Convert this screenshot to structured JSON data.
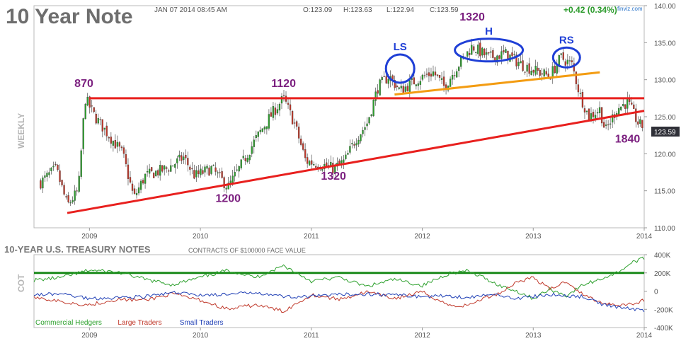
{
  "title": "10 Year Note",
  "header": {
    "timestamp": "JAN 07 2014 08:45 AM",
    "open": "O:123.09",
    "high": "H:123.63",
    "low": "L:122.94",
    "close": "C:123.59",
    "change": "+0.42 (0.34%)",
    "brand": "finviz.com"
  },
  "side_label": "WEEKLY",
  "last_price_tag": "123.59",
  "colors": {
    "up_candle": "#2ca02c",
    "down_candle": "#c0392b",
    "resistance": "#e8201e",
    "neckline": "#f39c12",
    "annotation": "#7b1f7f",
    "circle": "#1f3fd6",
    "zero_line": "#1a8a1a"
  },
  "chart_data": [
    {
      "type": "candlestick",
      "frequency": "weekly",
      "x_ticks": [
        "2009",
        "2010",
        "2011",
        "2012",
        "2013",
        "2014"
      ],
      "y_ticks": [
        "110.00",
        "115.00",
        "120.00",
        "125.00",
        "130.00",
        "135.00",
        "140.00"
      ],
      "ylim": [
        110,
        140
      ],
      "grid": false,
      "close_path": [
        {
          "t": 2008.55,
          "v": 116.0
        },
        {
          "t": 2008.7,
          "v": 118.0
        },
        {
          "t": 2008.8,
          "v": 113.0
        },
        {
          "t": 2008.9,
          "v": 115.0
        },
        {
          "t": 2008.96,
          "v": 127.5
        },
        {
          "t": 2009.05,
          "v": 125.0
        },
        {
          "t": 2009.2,
          "v": 122.0
        },
        {
          "t": 2009.3,
          "v": 120.0
        },
        {
          "t": 2009.4,
          "v": 114.0
        },
        {
          "t": 2009.5,
          "v": 117.0
        },
        {
          "t": 2009.7,
          "v": 118.0
        },
        {
          "t": 2009.85,
          "v": 119.5
        },
        {
          "t": 2009.95,
          "v": 117.0
        },
        {
          "t": 2010.1,
          "v": 118.0
        },
        {
          "t": 2010.25,
          "v": 115.5
        },
        {
          "t": 2010.35,
          "v": 118.0
        },
        {
          "t": 2010.5,
          "v": 122.0
        },
        {
          "t": 2010.65,
          "v": 125.5
        },
        {
          "t": 2010.75,
          "v": 127.5
        },
        {
          "t": 2010.85,
          "v": 124.0
        },
        {
          "t": 2010.95,
          "v": 119.0
        },
        {
          "t": 2011.1,
          "v": 118.5
        },
        {
          "t": 2011.2,
          "v": 118.0
        },
        {
          "t": 2011.3,
          "v": 119.0
        },
        {
          "t": 2011.4,
          "v": 122.0
        },
        {
          "t": 2011.5,
          "v": 124.0
        },
        {
          "t": 2011.6,
          "v": 129.0
        },
        {
          "t": 2011.7,
          "v": 130.5
        },
        {
          "t": 2011.8,
          "v": 128.5
        },
        {
          "t": 2011.95,
          "v": 130.0
        },
        {
          "t": 2012.1,
          "v": 131.0
        },
        {
          "t": 2012.2,
          "v": 129.0
        },
        {
          "t": 2012.3,
          "v": 131.5
        },
        {
          "t": 2012.45,
          "v": 134.5
        },
        {
          "t": 2012.6,
          "v": 133.0
        },
        {
          "t": 2012.75,
          "v": 133.5
        },
        {
          "t": 2012.9,
          "v": 132.0
        },
        {
          "t": 2013.05,
          "v": 131.0
        },
        {
          "t": 2013.15,
          "v": 130.5
        },
        {
          "t": 2013.25,
          "v": 133.0
        },
        {
          "t": 2013.35,
          "v": 132.0
        },
        {
          "t": 2013.42,
          "v": 128.0
        },
        {
          "t": 2013.5,
          "v": 125.0
        },
        {
          "t": 2013.6,
          "v": 126.0
        },
        {
          "t": 2013.65,
          "v": 123.0
        },
        {
          "t": 2013.75,
          "v": 126.0
        },
        {
          "t": 2013.85,
          "v": 127.0
        },
        {
          "t": 2013.95,
          "v": 124.0
        },
        {
          "t": 2014.0,
          "v": 123.59
        }
      ],
      "trend_lines": [
        {
          "name": "resistance",
          "from": {
            "t": 2009.0,
            "v": 127.5
          },
          "to": {
            "t": 2014.0,
            "v": 127.5
          }
        },
        {
          "name": "support",
          "from": {
            "t": 2008.8,
            "v": 112.0
          },
          "to": {
            "t": 2014.0,
            "v": 125.8
          }
        },
        {
          "name": "neckline",
          "from": {
            "t": 2011.75,
            "v": 128.0
          },
          "to": {
            "t": 2013.6,
            "v": 131.0
          }
        }
      ],
      "circles": [
        {
          "label": "LS",
          "t": 2011.8,
          "v": 131.5
        },
        {
          "label": "H",
          "t": 2012.6,
          "v": 134.0
        },
        {
          "label": "RS",
          "t": 2013.3,
          "v": 133.0
        }
      ],
      "annotations": [
        {
          "text": "870",
          "t": 2008.95,
          "v": 129.0
        },
        {
          "text": "1120",
          "t": 2010.75,
          "v": 129.0
        },
        {
          "text": "1200",
          "t": 2010.25,
          "v": 113.5
        },
        {
          "text": "1320",
          "t": 2011.2,
          "v": 116.5
        },
        {
          "text": "1320",
          "t": 2012.45,
          "v": 138.0
        },
        {
          "text": "1840",
          "t": 2013.85,
          "v": 121.5
        }
      ]
    },
    {
      "type": "line",
      "title": "10-YEAR U.S. TREASURY NOTES",
      "subtitle": "CONTRACTS OF $100000 FACE VALUE",
      "ylabel": "COT",
      "x_ticks": [
        "2009",
        "2010",
        "2011",
        "2012",
        "2013",
        "2014"
      ],
      "y_ticks": [
        "-400K",
        "-200K",
        "0",
        "200K",
        "400K"
      ],
      "ylim": [
        -400000,
        400000
      ],
      "reference_line": 200000,
      "series": [
        {
          "name": "Commercial Hedgers",
          "color": "#2ca02c",
          "points": [
            [
              2008.5,
              120000
            ],
            [
              2008.75,
              150000
            ],
            [
              2009.0,
              230000
            ],
            [
              2009.25,
              210000
            ],
            [
              2009.5,
              130000
            ],
            [
              2009.75,
              70000
            ],
            [
              2010.0,
              150000
            ],
            [
              2010.25,
              230000
            ],
            [
              2010.5,
              150000
            ],
            [
              2010.75,
              280000
            ],
            [
              2011.0,
              110000
            ],
            [
              2011.25,
              150000
            ],
            [
              2011.5,
              50000
            ],
            [
              2011.75,
              130000
            ],
            [
              2012.0,
              60000
            ],
            [
              2012.25,
              200000
            ],
            [
              2012.4,
              220000
            ],
            [
              2012.55,
              150000
            ],
            [
              2012.7,
              60000
            ],
            [
              2012.85,
              0
            ],
            [
              2013.0,
              -80000
            ],
            [
              2013.15,
              20000
            ],
            [
              2013.3,
              -50000
            ],
            [
              2013.45,
              70000
            ],
            [
              2013.6,
              130000
            ],
            [
              2013.75,
              200000
            ],
            [
              2013.9,
              320000
            ],
            [
              2014.0,
              360000
            ]
          ]
        },
        {
          "name": "Large Traders",
          "color": "#c0392b",
          "points": [
            [
              2008.5,
              -60000
            ],
            [
              2008.75,
              -120000
            ],
            [
              2009.0,
              -150000
            ],
            [
              2009.25,
              -90000
            ],
            [
              2009.5,
              -100000
            ],
            [
              2009.75,
              -30000
            ],
            [
              2010.0,
              -100000
            ],
            [
              2010.25,
              -200000
            ],
            [
              2010.5,
              -150000
            ],
            [
              2010.75,
              -220000
            ],
            [
              2011.0,
              -40000
            ],
            [
              2011.25,
              -90000
            ],
            [
              2011.5,
              -10000
            ],
            [
              2011.75,
              -80000
            ],
            [
              2012.0,
              -10000
            ],
            [
              2012.25,
              -160000
            ],
            [
              2012.4,
              -160000
            ],
            [
              2012.55,
              -80000
            ],
            [
              2012.7,
              -20000
            ],
            [
              2012.85,
              100000
            ],
            [
              2013.0,
              150000
            ],
            [
              2013.15,
              20000
            ],
            [
              2013.3,
              110000
            ],
            [
              2013.45,
              -40000
            ],
            [
              2013.6,
              -120000
            ],
            [
              2013.75,
              -150000
            ],
            [
              2013.9,
              -140000
            ],
            [
              2014.0,
              -100000
            ]
          ]
        },
        {
          "name": "Small Traders",
          "color": "#1f3fb5",
          "points": [
            [
              2008.5,
              -40000
            ],
            [
              2008.75,
              -30000
            ],
            [
              2009.0,
              -80000
            ],
            [
              2009.25,
              -70000
            ],
            [
              2009.5,
              -60000
            ],
            [
              2009.75,
              -20000
            ],
            [
              2010.0,
              -40000
            ],
            [
              2010.25,
              -40000
            ],
            [
              2010.5,
              -10000
            ],
            [
              2010.75,
              -60000
            ],
            [
              2011.0,
              -60000
            ],
            [
              2011.25,
              -40000
            ],
            [
              2011.5,
              -30000
            ],
            [
              2011.75,
              -40000
            ],
            [
              2012.0,
              -60000
            ],
            [
              2012.25,
              -50000
            ],
            [
              2012.4,
              -70000
            ],
            [
              2012.55,
              -50000
            ],
            [
              2012.7,
              -40000
            ],
            [
              2012.85,
              -80000
            ],
            [
              2013.0,
              -60000
            ],
            [
              2013.15,
              -40000
            ],
            [
              2013.3,
              -50000
            ],
            [
              2013.45,
              -60000
            ],
            [
              2013.6,
              -140000
            ],
            [
              2013.75,
              -170000
            ],
            [
              2013.9,
              -200000
            ],
            [
              2014.0,
              -210000
            ]
          ]
        }
      ]
    }
  ]
}
